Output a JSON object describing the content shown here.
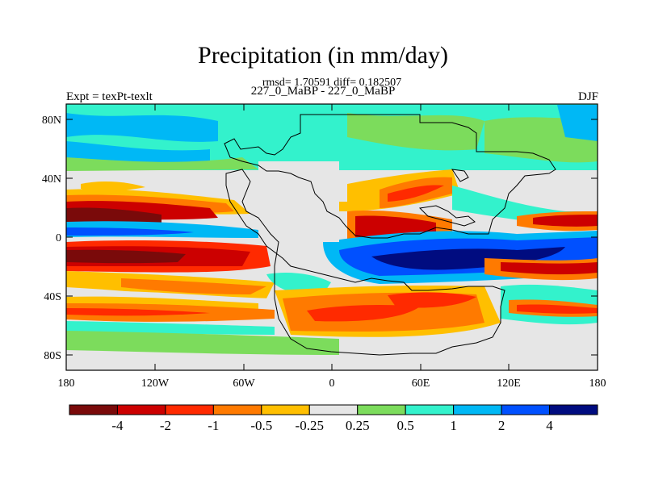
{
  "figure": {
    "title": "Precipitation (in mm/day)",
    "stats_line": "rmsd= 1.70591  diff= 0.182507",
    "subtitle": "227_0_MaBP - 227_0_MaBP",
    "left_label": "Expt = texPt-texlt",
    "right_label": "DJF"
  },
  "axes": {
    "lat_labels": [
      "80N",
      "40N",
      "0",
      "40S",
      "80S"
    ],
    "lon_labels": [
      "180",
      "120W",
      "60W",
      "0",
      "60E",
      "120E",
      "180"
    ]
  },
  "colorbar": {
    "labels": [
      "-4",
      "-2",
      "-1",
      "-0.5",
      "-0.25",
      "0.25",
      "0.5",
      "1",
      "2",
      "4"
    ],
    "colors": [
      "#7a0a0a",
      "#cc0000",
      "#ff2a00",
      "#ff7a00",
      "#ffbf00",
      "#e6e6e6",
      "#7cdc5c",
      "#33f2cc",
      "#00b8f5",
      "#0050ff",
      "#000c80"
    ]
  },
  "legend_colors": {
    "map_background": "#e6e6e6",
    "coastline": "#000000"
  }
}
